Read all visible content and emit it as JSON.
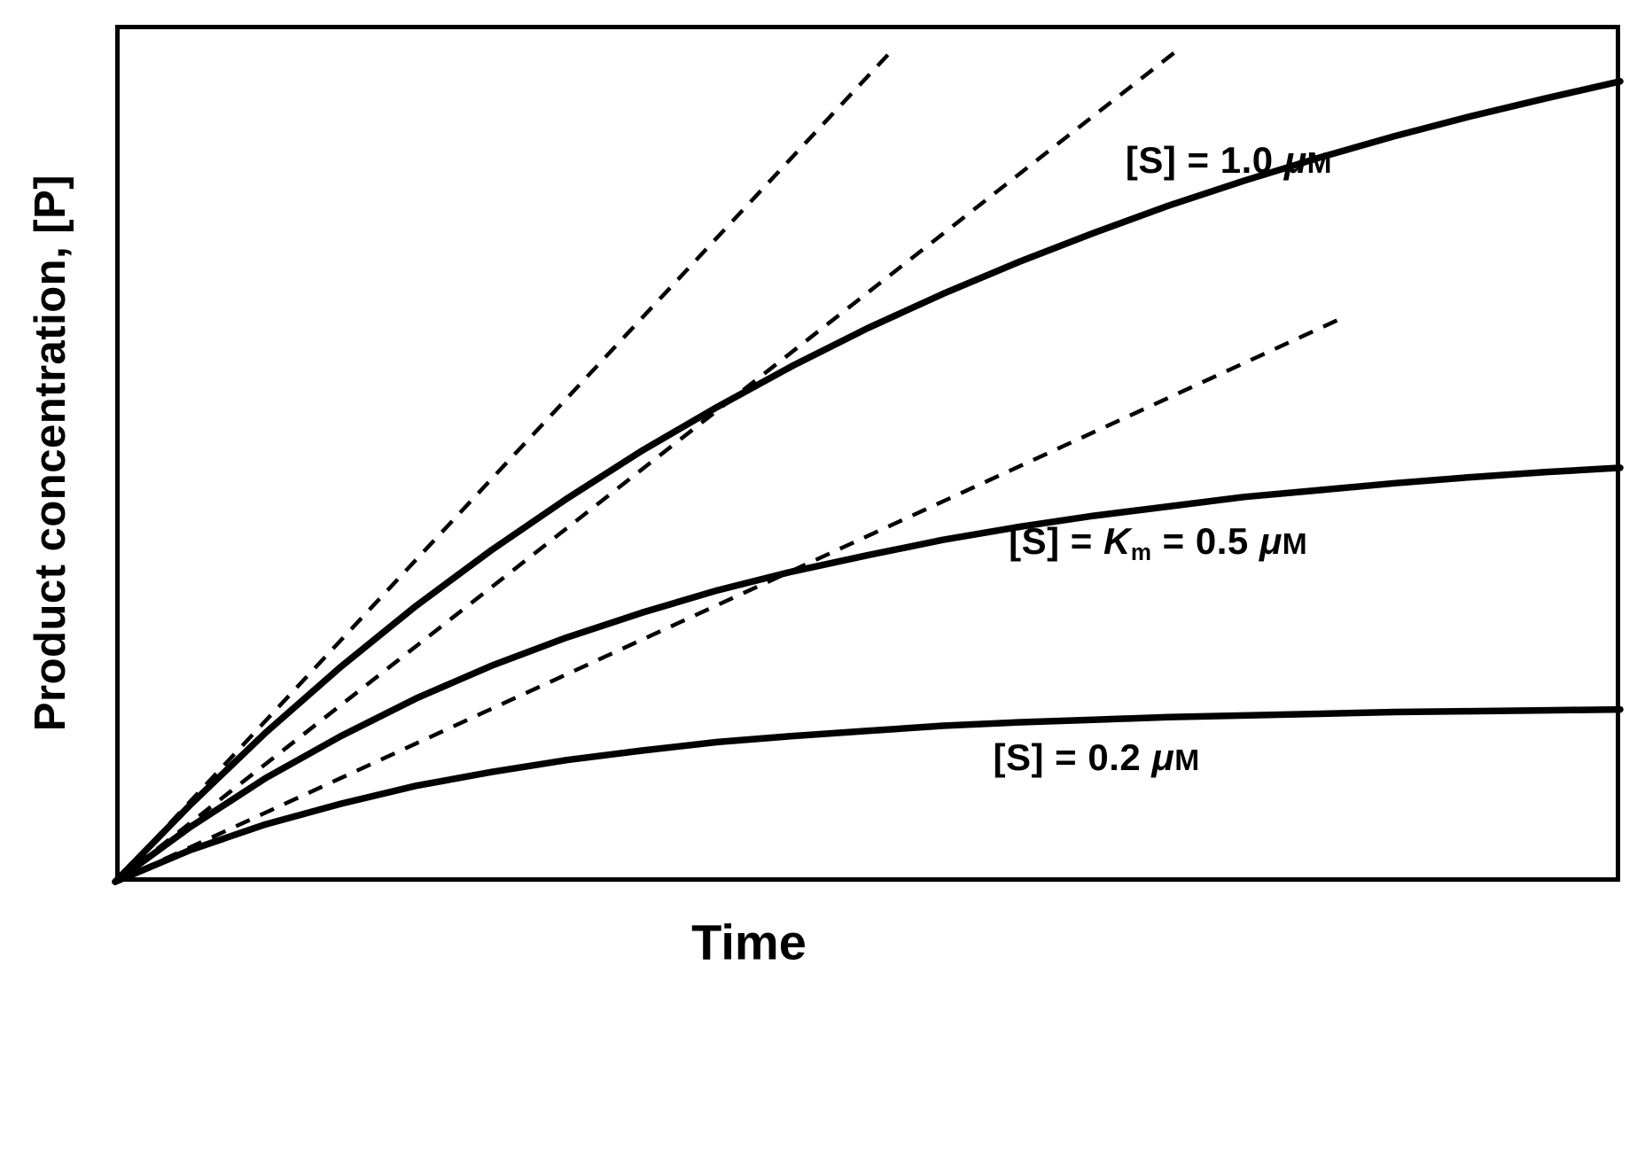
{
  "figure": {
    "background_color": "#ffffff",
    "line_color": "#000000"
  },
  "chart_data": {
    "type": "line",
    "title": "",
    "xlabel": "Time",
    "ylabel": "Product concentration, [P]",
    "x_axis": {
      "range": [
        0,
        10
      ],
      "ticks": [],
      "tick_labels": []
    },
    "y_axis": {
      "range": [
        0,
        1
      ],
      "ticks": [],
      "tick_labels": []
    },
    "grid": false,
    "frame": true,
    "legend": "inline-curve-labels",
    "x": [
      0,
      0.5,
      1,
      1.5,
      2,
      2.5,
      3,
      3.5,
      4,
      4.5,
      5,
      5.5,
      6,
      6.5,
      7,
      7.5,
      8,
      8.5,
      9,
      9.5,
      10
    ],
    "series": [
      {
        "name": "progress-curve-s-1-0um",
        "label": "[S] = 1.0 μM",
        "line_style": "solid",
        "stroke_width": 7.5,
        "y": [
          0,
          0.09,
          0.174,
          0.251,
          0.322,
          0.387,
          0.447,
          0.503,
          0.554,
          0.602,
          0.646,
          0.686,
          0.723,
          0.757,
          0.789,
          0.818,
          0.845,
          0.87,
          0.893,
          0.914,
          0.934
        ],
        "label_anchor": {
          "x_frac": 0.74,
          "y_frac": 0.842
        },
        "label_segments": [
          {
            "t": "[S] = 1.0 "
          },
          {
            "t": "μ",
            "s": "i"
          },
          {
            "t": "M",
            "s": "sc"
          }
        ]
      },
      {
        "name": "progress-curve-s-km-0-5um",
        "label": "[S] = Km = 0.5 μM",
        "line_style": "solid",
        "stroke_width": 7.5,
        "y": [
          0,
          0.064,
          0.121,
          0.17,
          0.214,
          0.252,
          0.285,
          0.314,
          0.34,
          0.362,
          0.381,
          0.399,
          0.414,
          0.427,
          0.438,
          0.449,
          0.457,
          0.465,
          0.472,
          0.478,
          0.483
        ],
        "label_anchor": {
          "x_frac": 0.693,
          "y_frac": 0.395
        },
        "label_segments": [
          {
            "t": "[S] = "
          },
          {
            "t": "K",
            "s": "i"
          },
          {
            "t": "m",
            "s": "sub"
          },
          {
            "t": " = 0.5 "
          },
          {
            "t": "μ",
            "s": "i"
          },
          {
            "t": "M",
            "s": "sc"
          }
        ]
      },
      {
        "name": "progress-curve-s-0-2um",
        "label": "[S] = 0.2 μM",
        "line_style": "solid",
        "stroke_width": 7.5,
        "y": [
          0,
          0.037,
          0.067,
          0.091,
          0.112,
          0.128,
          0.142,
          0.153,
          0.163,
          0.17,
          0.176,
          0.182,
          0.186,
          0.189,
          0.192,
          0.194,
          0.196,
          0.198,
          0.199,
          0.2,
          0.201
        ],
        "label_anchor": {
          "x_frac": 0.652,
          "y_frac": 0.145
        },
        "label_segments": [
          {
            "t": "[S] = 0.2 "
          },
          {
            "t": "μ",
            "s": "i"
          },
          {
            "t": "M",
            "s": "sc"
          }
        ]
      }
    ],
    "initial_velocity_tangents": [
      {
        "name": "tangent-initial-velocity-s-1-0um",
        "line_style": "dashed",
        "slope": 0.188,
        "from": [
          0,
          0
        ],
        "to": [
          5.15,
          0.968
        ]
      },
      {
        "name": "tangent-initial-velocity-s-km-0-5um",
        "line_style": "dashed",
        "slope": 0.1375,
        "from": [
          0,
          0
        ],
        "to": [
          7.07,
          0.972
        ]
      },
      {
        "name": "tangent-initial-velocity-s-0-2um",
        "line_style": "dashed",
        "slope": 0.0807,
        "from": [
          0,
          0
        ],
        "to": [
          8.13,
          0.656
        ]
      }
    ]
  }
}
